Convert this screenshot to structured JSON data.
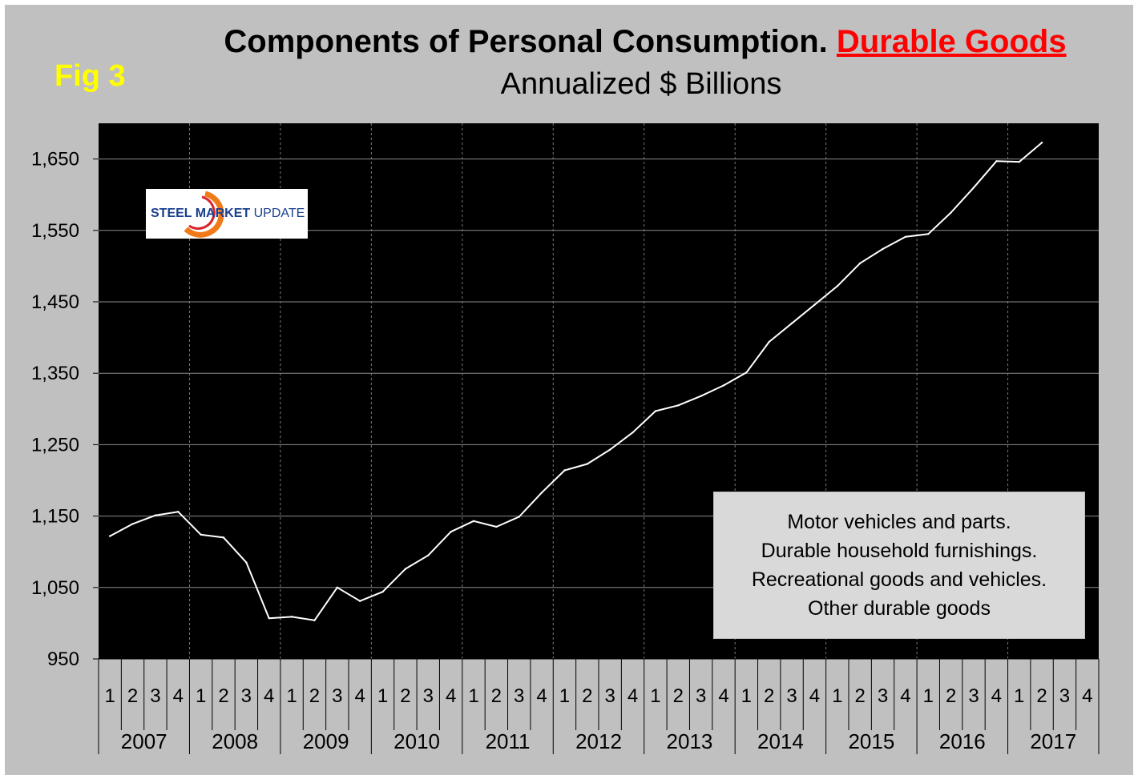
{
  "figure": {
    "fig_label": "Fig 3",
    "title_main": "Components of Personal Consumption. ",
    "title_highlight": "Durable Goods",
    "subtitle": "Annualized $ Billions"
  },
  "logo": {
    "text_bold": "STEEL MARKET",
    "text_light": " UPDATE"
  },
  "legend": {
    "lines": [
      "Motor vehicles and parts.",
      "Durable household furnishings.",
      "Recreational goods and vehicles.",
      "Other durable goods"
    ]
  },
  "colors": {
    "background": "#c0c0c0",
    "plot_area": "#000000",
    "line": "#ffffff",
    "fig_label": "#ffff00",
    "highlight": "#ff0000"
  },
  "chart_data": {
    "type": "line",
    "title": "Components of Personal Consumption. Durable Goods",
    "subtitle": "Annualized $ Billions",
    "xlabel": "",
    "ylabel": "",
    "ylim": [
      950,
      1700
    ],
    "yticks": [
      950,
      1050,
      1150,
      1250,
      1350,
      1450,
      1550,
      1650
    ],
    "ytick_labels": [
      "950",
      "1,050",
      "1,150",
      "1,250",
      "1,350",
      "1,450",
      "1,550",
      "1,650"
    ],
    "years": [
      "2007",
      "2008",
      "2009",
      "2010",
      "2011",
      "2012",
      "2013",
      "2014",
      "2015",
      "2016",
      "2017"
    ],
    "quarters": [
      "1",
      "2",
      "3",
      "4"
    ],
    "grid": true,
    "series": [
      {
        "name": "Durable Goods",
        "values": [
          1122,
          1139,
          1151,
          1156,
          1124,
          1120,
          1085,
          1007,
          1009,
          1004,
          1050,
          1031,
          1044,
          1076,
          1095,
          1128,
          1143,
          1135,
          1149,
          1183,
          1214,
          1223,
          1243,
          1267,
          1297,
          1305,
          1318,
          1333,
          1351,
          1394,
          1420,
          1446,
          1472,
          1504,
          1524,
          1541,
          1545,
          1575,
          1610,
          1647,
          1646,
          1673
        ]
      }
    ]
  }
}
